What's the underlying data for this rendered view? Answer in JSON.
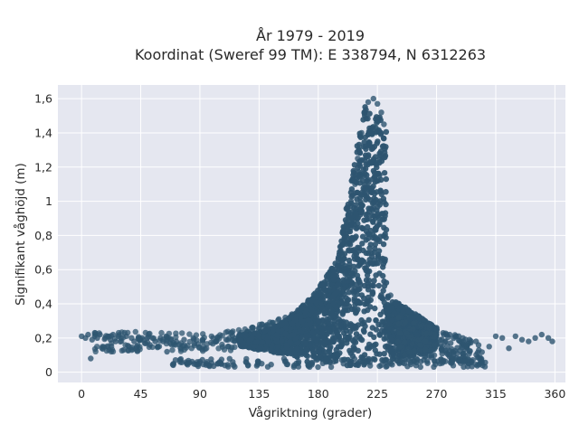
{
  "chart_data": {
    "type": "scatter",
    "title": "År 1979 - 2019",
    "subtitle": "Koordinat (Sweref 99 TM): E 338794, N 6312263",
    "xlabel": "Vågriktning (grader)",
    "ylabel": "Signifikant våghöjd (m)",
    "xlim": [
      -18,
      368
    ],
    "ylim": [
      -0.06,
      1.68
    ],
    "x_ticks": [
      0,
      45,
      90,
      135,
      180,
      225,
      270,
      315,
      360
    ],
    "y_ticks": [
      0,
      0.2,
      0.4,
      0.6,
      0.8,
      1.0,
      1.2,
      1.4,
      1.6
    ],
    "x_tick_labels": [
      "0",
      "45",
      "90",
      "135",
      "180",
      "225",
      "270",
      "315",
      "360"
    ],
    "y_tick_labels": [
      "0",
      "0,2",
      "0,4",
      "0,6",
      "0,8",
      "1",
      "1,2",
      "1,4",
      "1,6"
    ],
    "grid": true,
    "background": "#e5e7f0",
    "marker_color": "#2e5570",
    "series": [
      {
        "points": [
          [
            0,
            0.21
          ],
          [
            3,
            0.2
          ],
          [
            5,
            0.22
          ],
          [
            7,
            0.08
          ],
          [
            8,
            0.19
          ],
          [
            10,
            0.21
          ],
          [
            12,
            0.2
          ],
          [
            14,
            0.22
          ],
          [
            16,
            0.15
          ],
          [
            18,
            0.2
          ],
          [
            20,
            0.21
          ],
          [
            22,
            0.19
          ],
          [
            24,
            0.22
          ],
          [
            26,
            0.18
          ],
          [
            28,
            0.21
          ],
          [
            30,
            0.2
          ],
          [
            32,
            0.13
          ],
          [
            34,
            0.21
          ],
          [
            36,
            0.15
          ],
          [
            38,
            0.2
          ],
          [
            40,
            0.18
          ],
          [
            42,
            0.15
          ],
          [
            44,
            0.19
          ],
          [
            46,
            0.2
          ],
          [
            48,
            0.17
          ],
          [
            50,
            0.2
          ],
          [
            52,
            0.16
          ],
          [
            54,
            0.2
          ],
          [
            56,
            0.18
          ],
          [
            58,
            0.15
          ],
          [
            60,
            0.2
          ],
          [
            62,
            0.18
          ],
          [
            65,
            0.12
          ],
          [
            68,
            0.19
          ],
          [
            70,
            0.05
          ],
          [
            72,
            0.18
          ],
          [
            75,
            0.06
          ],
          [
            78,
            0.19
          ],
          [
            80,
            0.05
          ],
          [
            85,
            0.2
          ],
          [
            88,
            0.06
          ],
          [
            92,
            0.19
          ],
          [
            95,
            0.05
          ],
          [
            100,
            0.2
          ],
          [
            105,
            0.06
          ],
          [
            110,
            0.19
          ],
          [
            115,
            0.06
          ],
          [
            120,
            0.22
          ],
          [
            125,
            0.06
          ],
          [
            130,
            0.24
          ],
          [
            135,
            0.26
          ],
          [
            140,
            0.27
          ],
          [
            145,
            0.29
          ],
          [
            150,
            0.31
          ],
          [
            155,
            0.32
          ],
          [
            160,
            0.34
          ],
          [
            165,
            0.35
          ],
          [
            170,
            0.37
          ],
          [
            175,
            0.4
          ],
          [
            180,
            0.43
          ],
          [
            185,
            0.48
          ],
          [
            190,
            0.55
          ],
          [
            195,
            0.63
          ],
          [
            200,
            0.78
          ],
          [
            203,
            0.9
          ],
          [
            205,
            1.0
          ],
          [
            208,
            1.1
          ],
          [
            210,
            1.25
          ],
          [
            213,
            1.4
          ],
          [
            215,
            1.52
          ],
          [
            218,
            1.58
          ],
          [
            222,
            1.6
          ],
          [
            225,
            1.57
          ],
          [
            228,
            1.52
          ],
          [
            230,
            1.45
          ],
          [
            235,
            0.45
          ],
          [
            240,
            0.4
          ],
          [
            245,
            0.36
          ],
          [
            250,
            0.33
          ],
          [
            255,
            0.3
          ],
          [
            260,
            0.28
          ],
          [
            265,
            0.26
          ],
          [
            270,
            0.25
          ],
          [
            275,
            0.23
          ],
          [
            280,
            0.22
          ],
          [
            285,
            0.21
          ],
          [
            290,
            0.2
          ],
          [
            295,
            0.19
          ],
          [
            300,
            0.18
          ],
          [
            305,
            0.04
          ],
          [
            310,
            0.15
          ],
          [
            315,
            0.21
          ],
          [
            320,
            0.2
          ],
          [
            325,
            0.14
          ],
          [
            330,
            0.21
          ],
          [
            335,
            0.19
          ],
          [
            340,
            0.18
          ],
          [
            345,
            0.2
          ],
          [
            350,
            0.22
          ],
          [
            355,
            0.2
          ],
          [
            358,
            0.18
          ]
        ]
      }
    ]
  }
}
